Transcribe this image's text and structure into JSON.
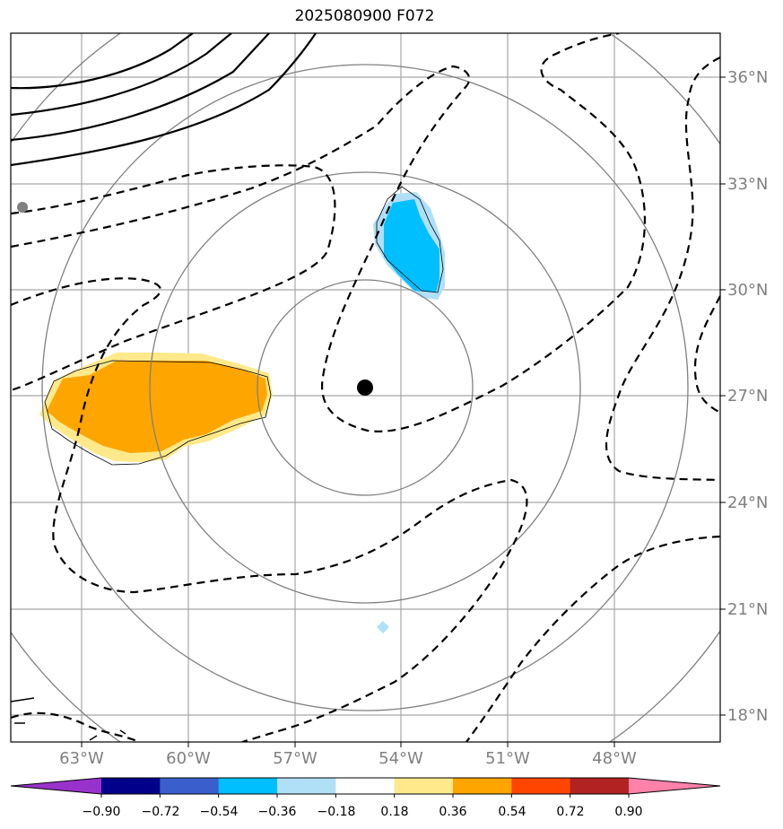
{
  "title": "2025080900 F072",
  "lat_labels": [
    "36°N",
    "33°N",
    "30°N",
    "27°N",
    "24°N",
    "21°N",
    "18°N"
  ],
  "lon_labels": [
    "63°W",
    "60°W",
    "57°W",
    "54°W",
    "51°W",
    "48°W"
  ],
  "colorbar": {
    "ticks": [
      "−0.90",
      "−0.72",
      "−0.54",
      "−0.36",
      "−0.18",
      "0.18",
      "0.36",
      "0.54",
      "0.72",
      "0.90"
    ],
    "colors": [
      "#9932cc",
      "#00008b",
      "#3a5fcd",
      "#00bfff",
      "#b0e0f8",
      "#ffffff",
      "#ffe98a",
      "#ffa500",
      "#ff4500",
      "#b22222",
      "#ff82ab"
    ]
  },
  "colors": {
    "grid": "#a6a6a6",
    "range_ring": "#808080",
    "contour": "#000000",
    "orange": "#ffa500",
    "yellow": "#ffe98a",
    "cyan": "#00bfff",
    "lightblue": "#b0e0f8",
    "label": "#808080"
  }
}
